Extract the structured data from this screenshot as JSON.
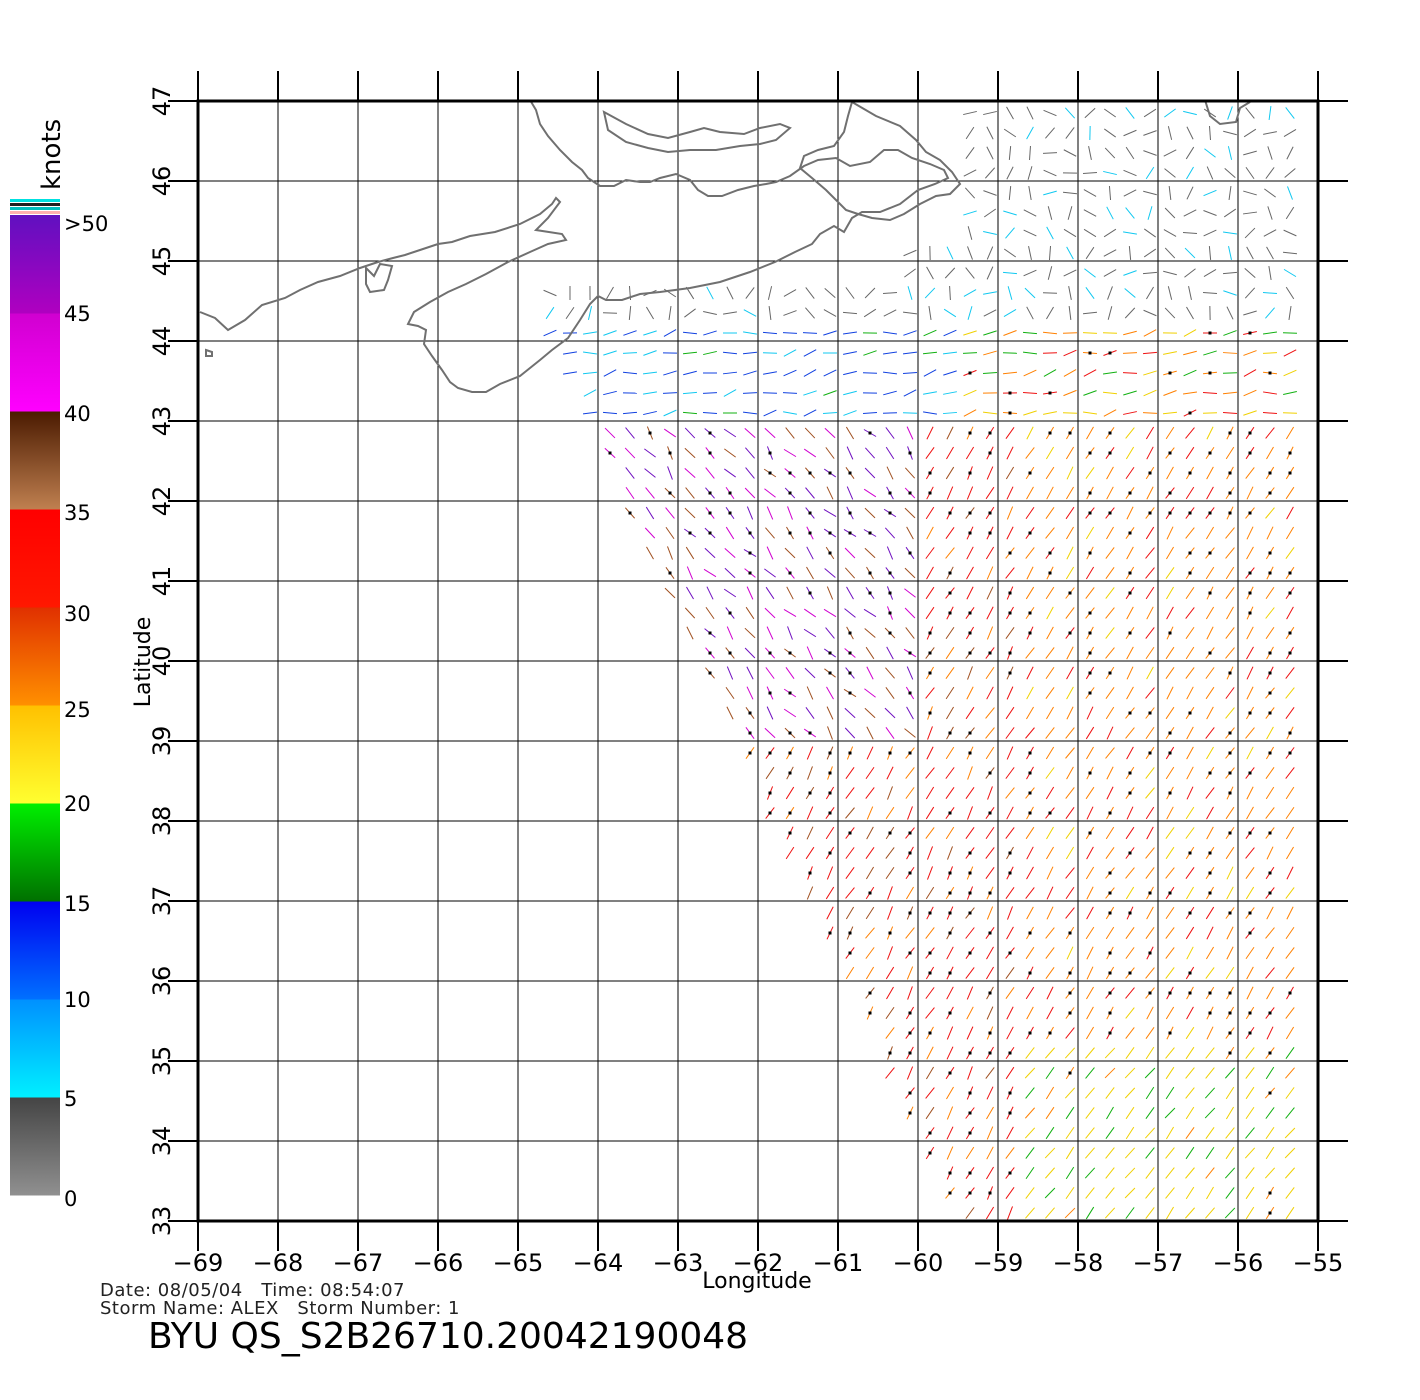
{
  "map": {
    "x_axis_label": "Longitude",
    "y_axis_label": "Latitude",
    "lon_ticks": [
      -69,
      -68,
      -67,
      -66,
      -65,
      -64,
      -63,
      -62,
      -61,
      -60,
      -59,
      -58,
      -57,
      -56,
      -55
    ],
    "lat_ticks": [
      33,
      34,
      35,
      36,
      37,
      38,
      39,
      40,
      41,
      42,
      43,
      44,
      45,
      46,
      47
    ],
    "lon_range": [
      -69,
      -55
    ],
    "lat_range": [
      33,
      47
    ],
    "coastline_color": "#707070",
    "grid": true
  },
  "legend": {
    "title": "knots",
    "labels": [
      ">50",
      "45",
      "40",
      "35",
      "30",
      "25",
      "20",
      "15",
      "10",
      "5",
      "0"
    ],
    "bands": [
      {
        "from": 0,
        "to": 5,
        "top": "#444444",
        "bottom": "#909090"
      },
      {
        "from": 5,
        "to": 10,
        "top": "#0090ff",
        "bottom": "#00f0ff"
      },
      {
        "from": 10,
        "to": 15,
        "top": "#0000f0",
        "bottom": "#0070ff"
      },
      {
        "from": 15,
        "to": 20,
        "top": "#00f000",
        "bottom": "#007000"
      },
      {
        "from": 20,
        "to": 25,
        "top": "#ffc000",
        "bottom": "#ffff30"
      },
      {
        "from": 25,
        "to": 30,
        "top": "#e03000",
        "bottom": "#ff9000"
      },
      {
        "from": 30,
        "to": 35,
        "top": "#ff0000",
        "bottom": "#ff1800"
      },
      {
        "from": 35,
        "to": 40,
        "top": "#4a1a00",
        "bottom": "#c08050"
      },
      {
        "from": 40,
        "to": 45,
        "top": "#d000d0",
        "bottom": "#ff00ff"
      },
      {
        "from": 45,
        "to": 50,
        "top": "#6010c0",
        "bottom": "#b000c0"
      }
    ]
  },
  "footer": {
    "date_line": "Date: 08/05/04   Time: 08:54:07",
    "storm_line": "Storm Name: ALEX   Storm Number: 1",
    "title": "BYU QS_S2B26710.20042190048"
  }
}
